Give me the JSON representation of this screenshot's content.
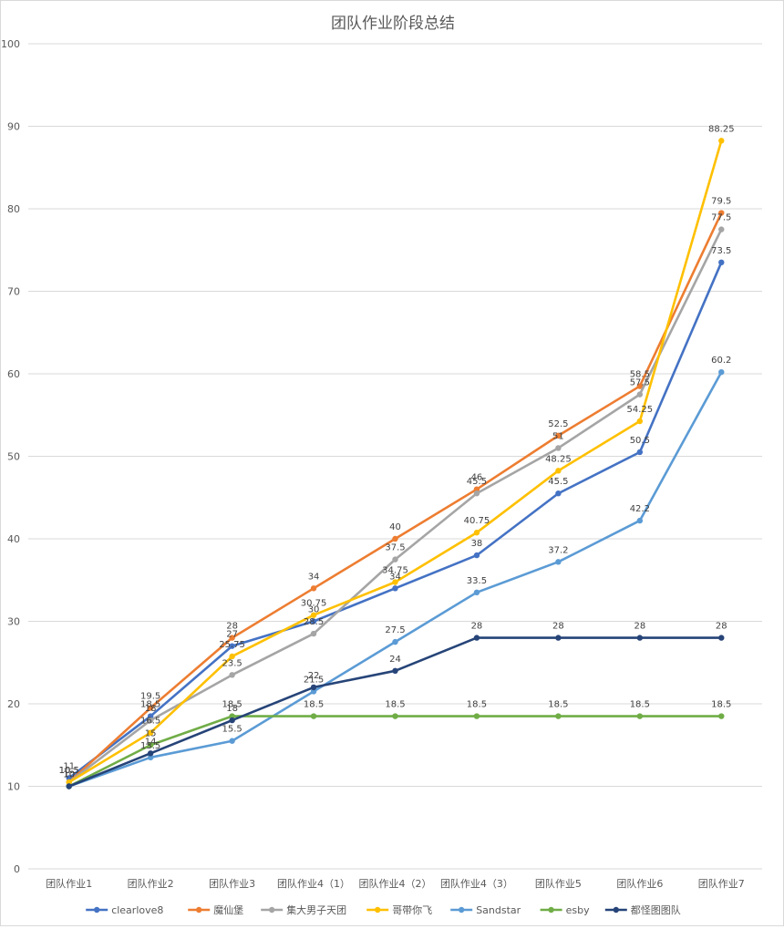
{
  "chart_data": {
    "type": "line",
    "title": "团队作业阶段总结",
    "xlabel": "",
    "ylabel": "",
    "ylim": [
      0,
      100
    ],
    "yticks": [
      0,
      10,
      20,
      30,
      40,
      50,
      60,
      70,
      80,
      90,
      100
    ],
    "grid": true,
    "legend_position": "bottom",
    "categories": [
      "团队作业1",
      "团队作业2",
      "团队作业3",
      "团队作业4（1）",
      "团队作业4（2）",
      "团队作业4（3）",
      "团队作业5",
      "团队作业6",
      "团队作业7"
    ],
    "series": [
      {
        "name": "clearlove8",
        "color": "#4472c4",
        "values": [
          11,
          18.5,
          27,
          30,
          34,
          38,
          45.5,
          50.5,
          73.5
        ]
      },
      {
        "name": "魔仙堡",
        "color": "#ed7d31",
        "values": [
          10.5,
          19.5,
          28,
          34,
          40,
          46,
          52.5,
          58.5,
          79.5
        ]
      },
      {
        "name": "集大男子天团",
        "color": "#a5a5a5",
        "values": [
          10.5,
          18,
          23.5,
          28.5,
          37.5,
          45.5,
          51,
          57.5,
          77.5
        ]
      },
      {
        "name": "哥带你飞",
        "color": "#ffc000",
        "values": [
          10.5,
          16.5,
          25.75,
          30.75,
          34.75,
          40.75,
          48.25,
          54.25,
          88.25
        ]
      },
      {
        "name": "Sandstar",
        "color": "#5b9bd5",
        "values": [
          10,
          13.5,
          15.5,
          21.5,
          27.5,
          33.5,
          37.2,
          42.2,
          60.2
        ]
      },
      {
        "name": "esby",
        "color": "#70ad47",
        "values": [
          10,
          15,
          18.5,
          18.5,
          18.5,
          18.5,
          18.5,
          18.5,
          18.5
        ]
      },
      {
        "name": "都怪图图队",
        "color": "#264478",
        "values": [
          10,
          14,
          18,
          22,
          24,
          28,
          28,
          28,
          28
        ]
      }
    ]
  }
}
